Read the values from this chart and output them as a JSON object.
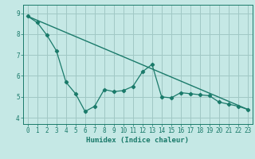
{
  "title": "",
  "xlabel": "Humidex (Indice chaleur)",
  "bg_color": "#c5e8e5",
  "line_color": "#1a7a6a",
  "grid_color": "#a0c8c5",
  "xlim": [
    -0.5,
    23.5
  ],
  "ylim": [
    3.7,
    9.4
  ],
  "xticks": [
    0,
    1,
    2,
    3,
    4,
    5,
    6,
    7,
    8,
    9,
    10,
    11,
    12,
    13,
    14,
    15,
    16,
    17,
    18,
    19,
    20,
    21,
    22,
    23
  ],
  "yticks": [
    4,
    5,
    6,
    7,
    8,
    9
  ],
  "jagged_x": [
    0,
    1,
    2,
    3,
    4,
    5,
    6,
    7,
    8,
    9,
    10,
    11,
    12,
    13,
    14,
    15,
    16,
    17,
    18,
    19,
    20,
    21,
    22,
    23
  ],
  "jagged_y": [
    8.85,
    8.55,
    7.95,
    7.2,
    5.7,
    5.15,
    4.3,
    4.55,
    5.35,
    5.25,
    5.3,
    5.5,
    6.2,
    6.55,
    5.0,
    4.95,
    5.2,
    5.15,
    5.1,
    5.05,
    4.75,
    4.65,
    4.55,
    4.4
  ],
  "trend_x": [
    0,
    23
  ],
  "trend_y": [
    8.85,
    4.4
  ]
}
